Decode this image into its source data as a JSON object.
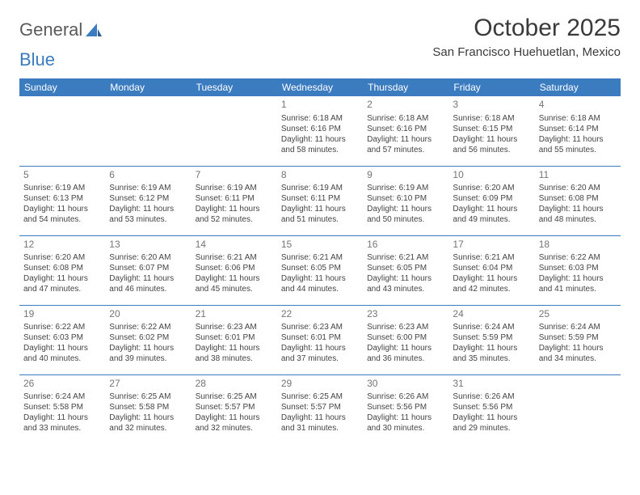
{
  "brand": {
    "word1": "General",
    "word2": "Blue"
  },
  "title": "October 2025",
  "location": "San Francisco Huehuetlan, Mexico",
  "colors": {
    "header_bg": "#3b7bbf",
    "header_text": "#ffffff",
    "border": "#3b7bbf",
    "daynum": "#757575",
    "body_text": "#444444",
    "background": "#ffffff"
  },
  "weekdays": [
    "Sunday",
    "Monday",
    "Tuesday",
    "Wednesday",
    "Thursday",
    "Friday",
    "Saturday"
  ],
  "weeks": [
    [
      null,
      null,
      null,
      {
        "n": "1",
        "sr": "Sunrise: 6:18 AM",
        "ss": "Sunset: 6:16 PM",
        "dl": "Daylight: 11 hours and 58 minutes."
      },
      {
        "n": "2",
        "sr": "Sunrise: 6:18 AM",
        "ss": "Sunset: 6:16 PM",
        "dl": "Daylight: 11 hours and 57 minutes."
      },
      {
        "n": "3",
        "sr": "Sunrise: 6:18 AM",
        "ss": "Sunset: 6:15 PM",
        "dl": "Daylight: 11 hours and 56 minutes."
      },
      {
        "n": "4",
        "sr": "Sunrise: 6:18 AM",
        "ss": "Sunset: 6:14 PM",
        "dl": "Daylight: 11 hours and 55 minutes."
      }
    ],
    [
      {
        "n": "5",
        "sr": "Sunrise: 6:19 AM",
        "ss": "Sunset: 6:13 PM",
        "dl": "Daylight: 11 hours and 54 minutes."
      },
      {
        "n": "6",
        "sr": "Sunrise: 6:19 AM",
        "ss": "Sunset: 6:12 PM",
        "dl": "Daylight: 11 hours and 53 minutes."
      },
      {
        "n": "7",
        "sr": "Sunrise: 6:19 AM",
        "ss": "Sunset: 6:11 PM",
        "dl": "Daylight: 11 hours and 52 minutes."
      },
      {
        "n": "8",
        "sr": "Sunrise: 6:19 AM",
        "ss": "Sunset: 6:11 PM",
        "dl": "Daylight: 11 hours and 51 minutes."
      },
      {
        "n": "9",
        "sr": "Sunrise: 6:19 AM",
        "ss": "Sunset: 6:10 PM",
        "dl": "Daylight: 11 hours and 50 minutes."
      },
      {
        "n": "10",
        "sr": "Sunrise: 6:20 AM",
        "ss": "Sunset: 6:09 PM",
        "dl": "Daylight: 11 hours and 49 minutes."
      },
      {
        "n": "11",
        "sr": "Sunrise: 6:20 AM",
        "ss": "Sunset: 6:08 PM",
        "dl": "Daylight: 11 hours and 48 minutes."
      }
    ],
    [
      {
        "n": "12",
        "sr": "Sunrise: 6:20 AM",
        "ss": "Sunset: 6:08 PM",
        "dl": "Daylight: 11 hours and 47 minutes."
      },
      {
        "n": "13",
        "sr": "Sunrise: 6:20 AM",
        "ss": "Sunset: 6:07 PM",
        "dl": "Daylight: 11 hours and 46 minutes."
      },
      {
        "n": "14",
        "sr": "Sunrise: 6:21 AM",
        "ss": "Sunset: 6:06 PM",
        "dl": "Daylight: 11 hours and 45 minutes."
      },
      {
        "n": "15",
        "sr": "Sunrise: 6:21 AM",
        "ss": "Sunset: 6:05 PM",
        "dl": "Daylight: 11 hours and 44 minutes."
      },
      {
        "n": "16",
        "sr": "Sunrise: 6:21 AM",
        "ss": "Sunset: 6:05 PM",
        "dl": "Daylight: 11 hours and 43 minutes."
      },
      {
        "n": "17",
        "sr": "Sunrise: 6:21 AM",
        "ss": "Sunset: 6:04 PM",
        "dl": "Daylight: 11 hours and 42 minutes."
      },
      {
        "n": "18",
        "sr": "Sunrise: 6:22 AM",
        "ss": "Sunset: 6:03 PM",
        "dl": "Daylight: 11 hours and 41 minutes."
      }
    ],
    [
      {
        "n": "19",
        "sr": "Sunrise: 6:22 AM",
        "ss": "Sunset: 6:03 PM",
        "dl": "Daylight: 11 hours and 40 minutes."
      },
      {
        "n": "20",
        "sr": "Sunrise: 6:22 AM",
        "ss": "Sunset: 6:02 PM",
        "dl": "Daylight: 11 hours and 39 minutes."
      },
      {
        "n": "21",
        "sr": "Sunrise: 6:23 AM",
        "ss": "Sunset: 6:01 PM",
        "dl": "Daylight: 11 hours and 38 minutes."
      },
      {
        "n": "22",
        "sr": "Sunrise: 6:23 AM",
        "ss": "Sunset: 6:01 PM",
        "dl": "Daylight: 11 hours and 37 minutes."
      },
      {
        "n": "23",
        "sr": "Sunrise: 6:23 AM",
        "ss": "Sunset: 6:00 PM",
        "dl": "Daylight: 11 hours and 36 minutes."
      },
      {
        "n": "24",
        "sr": "Sunrise: 6:24 AM",
        "ss": "Sunset: 5:59 PM",
        "dl": "Daylight: 11 hours and 35 minutes."
      },
      {
        "n": "25",
        "sr": "Sunrise: 6:24 AM",
        "ss": "Sunset: 5:59 PM",
        "dl": "Daylight: 11 hours and 34 minutes."
      }
    ],
    [
      {
        "n": "26",
        "sr": "Sunrise: 6:24 AM",
        "ss": "Sunset: 5:58 PM",
        "dl": "Daylight: 11 hours and 33 minutes."
      },
      {
        "n": "27",
        "sr": "Sunrise: 6:25 AM",
        "ss": "Sunset: 5:58 PM",
        "dl": "Daylight: 11 hours and 32 minutes."
      },
      {
        "n": "28",
        "sr": "Sunrise: 6:25 AM",
        "ss": "Sunset: 5:57 PM",
        "dl": "Daylight: 11 hours and 32 minutes."
      },
      {
        "n": "29",
        "sr": "Sunrise: 6:25 AM",
        "ss": "Sunset: 5:57 PM",
        "dl": "Daylight: 11 hours and 31 minutes."
      },
      {
        "n": "30",
        "sr": "Sunrise: 6:26 AM",
        "ss": "Sunset: 5:56 PM",
        "dl": "Daylight: 11 hours and 30 minutes."
      },
      {
        "n": "31",
        "sr": "Sunrise: 6:26 AM",
        "ss": "Sunset: 5:56 PM",
        "dl": "Daylight: 11 hours and 29 minutes."
      },
      null
    ]
  ]
}
